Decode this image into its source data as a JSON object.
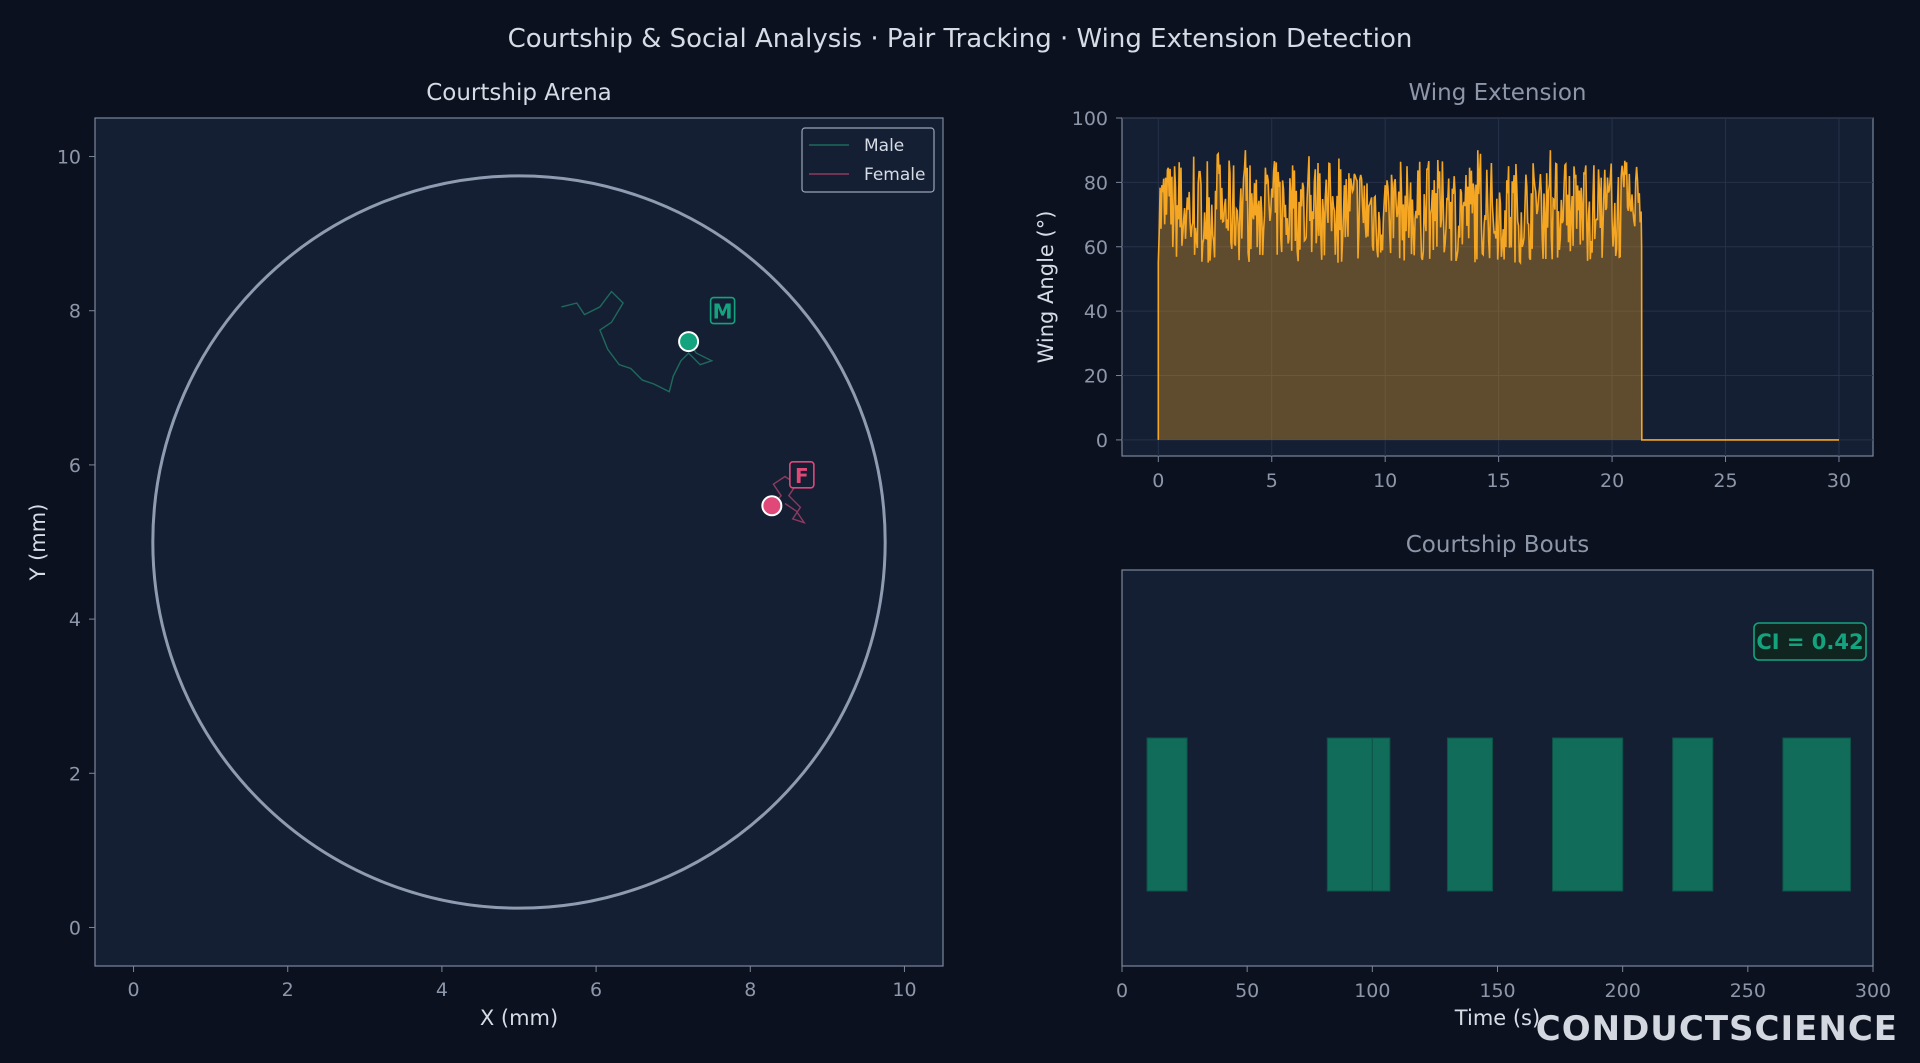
{
  "title": "Courtship & Social Analysis · Pair Tracking · Wing Extension Detection",
  "logo_text": "CONDUCTSCIENCE",
  "colors": {
    "background": "#0c1120",
    "panel": "#151f33",
    "male": "#14a37f",
    "female": "#e0487a",
    "wing": "#f5a623",
    "bout": "#116d5a",
    "arena": "#8e9bb0"
  },
  "chart_data": [
    {
      "type": "scatter",
      "title": "Courtship Arena",
      "xlabel": "X (mm)",
      "ylabel": "Y (mm)",
      "xlim": [
        -0.5,
        10.5
      ],
      "ylim": [
        -0.5,
        10.5
      ],
      "xticks": [
        0,
        2,
        4,
        6,
        8,
        10
      ],
      "yticks": [
        0,
        2,
        4,
        6,
        8,
        10
      ],
      "grid": false,
      "legend_position": "top-right",
      "arena": {
        "center": [
          5,
          5
        ],
        "radius": 4.75
      },
      "series": [
        {
          "name": "Male",
          "marker_label": "M",
          "current_position": [
            7.2,
            7.6
          ],
          "path": [
            [
              5.55,
              8.05
            ],
            [
              5.75,
              8.1
            ],
            [
              5.85,
              7.95
            ],
            [
              6.05,
              8.05
            ],
            [
              6.2,
              8.25
            ],
            [
              6.35,
              8.1
            ],
            [
              6.2,
              7.85
            ],
            [
              6.05,
              7.75
            ],
            [
              6.15,
              7.5
            ],
            [
              6.3,
              7.3
            ],
            [
              6.45,
              7.25
            ],
            [
              6.6,
              7.1
            ],
            [
              6.75,
              7.05
            ],
            [
              6.95,
              6.95
            ],
            [
              7.0,
              7.15
            ],
            [
              7.1,
              7.35
            ],
            [
              7.2,
              7.45
            ],
            [
              7.35,
              7.3
            ],
            [
              7.5,
              7.35
            ],
            [
              7.3,
              7.45
            ],
            [
              7.2,
              7.6
            ]
          ]
        },
        {
          "name": "Female",
          "marker_label": "F",
          "current_position": [
            8.28,
            5.47
          ],
          "path": [
            [
              8.28,
              5.47
            ],
            [
              8.4,
              5.6
            ],
            [
              8.3,
              5.75
            ],
            [
              8.45,
              5.85
            ],
            [
              8.6,
              5.75
            ],
            [
              8.5,
              5.6
            ],
            [
              8.65,
              5.45
            ],
            [
              8.55,
              5.3
            ],
            [
              8.7,
              5.25
            ],
            [
              8.6,
              5.4
            ],
            [
              8.45,
              5.5
            ]
          ]
        }
      ]
    },
    {
      "type": "area",
      "title": "Wing Extension",
      "xlabel": "",
      "ylabel": "Wing Angle (°)",
      "xlim": [
        -1.6,
        31.5
      ],
      "ylim": [
        -5,
        100
      ],
      "xticks": [
        0,
        5,
        10,
        15,
        20,
        25,
        30
      ],
      "yticks": [
        0,
        20,
        40,
        60,
        80,
        100
      ],
      "grid": true,
      "active_until": 21.3,
      "active_range": [
        50,
        90
      ],
      "rest_value": 0,
      "x_end": 30
    },
    {
      "type": "bar",
      "title": "Courtship Bouts",
      "xlabel": "Time (s)",
      "ylabel": "",
      "xlim": [
        0,
        300
      ],
      "xticks": [
        0,
        50,
        100,
        150,
        200,
        250,
        300
      ],
      "annotation": "CI = 0.42",
      "bouts": [
        [
          10,
          26
        ],
        [
          82,
          100
        ],
        [
          100,
          107
        ],
        [
          130,
          148
        ],
        [
          172,
          200
        ],
        [
          220,
          236
        ],
        [
          264,
          291
        ]
      ]
    }
  ]
}
